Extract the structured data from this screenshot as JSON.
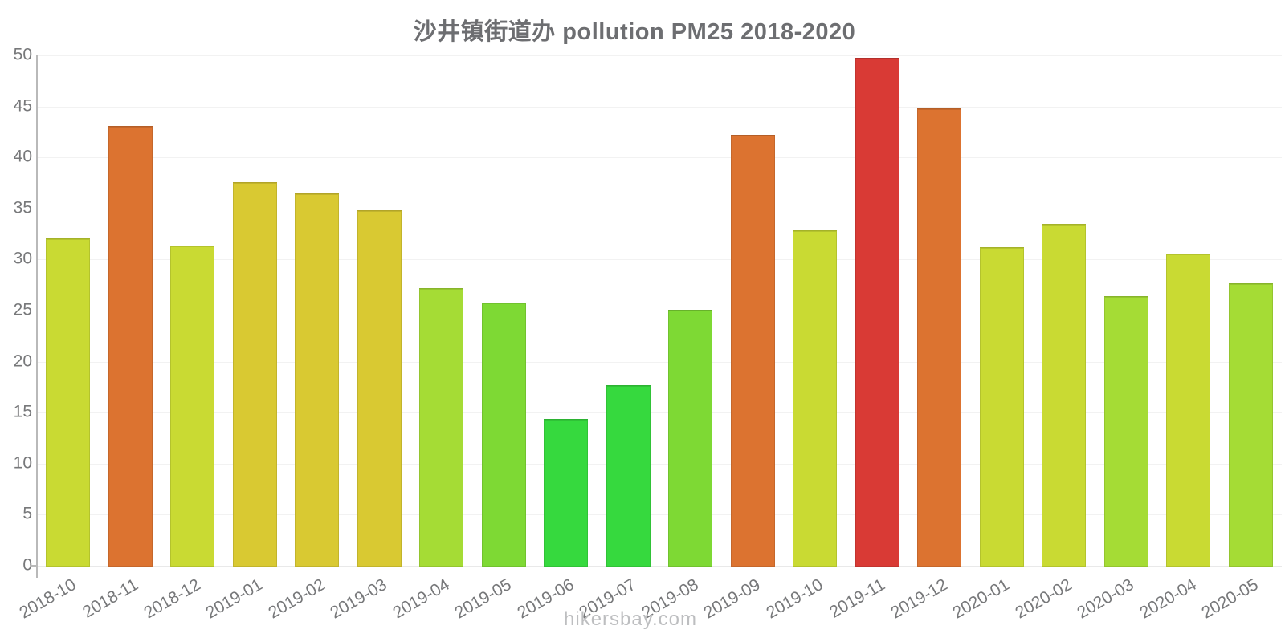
{
  "chart_data": {
    "type": "bar",
    "title": "沙井镇街道办 pollution PM25 2018-2020",
    "xlabel": "",
    "ylabel": "",
    "ylim": [
      0,
      50
    ],
    "yticks": [
      0,
      5,
      10,
      15,
      20,
      25,
      30,
      35,
      40,
      45,
      50
    ],
    "grid": true,
    "legend": false,
    "categories": [
      "2018-10",
      "2018-11",
      "2018-12",
      "2019-01",
      "2019-02",
      "2019-03",
      "2019-04",
      "2019-05",
      "2019-06",
      "2019-07",
      "2019-08",
      "2019-09",
      "2019-10",
      "2019-11",
      "2019-12",
      "2020-01",
      "2020-02",
      "2020-03",
      "2020-04",
      "2020-05"
    ],
    "values": [
      32.1,
      43.1,
      31.4,
      37.6,
      36.5,
      34.8,
      27.2,
      25.8,
      14.4,
      17.7,
      25.1,
      42.2,
      32.9,
      49.8,
      44.8,
      31.2,
      33.5,
      26.4,
      30.6,
      27.7
    ],
    "bar_colors": [
      "#c9da33",
      "#dc7330",
      "#c9da33",
      "#d9c932",
      "#d9c932",
      "#d9c932",
      "#a5dc35",
      "#7ed934",
      "#36d93e",
      "#36d93e",
      "#7ed934",
      "#dc7330",
      "#c9da33",
      "#d93a35",
      "#dc7330",
      "#c9da33",
      "#c9da33",
      "#a5dc35",
      "#c9da33",
      "#a5dc35"
    ]
  },
  "watermark": "hikersbay.com",
  "colors": {
    "title_text": "#6d6e71",
    "axis_text": "#77787a",
    "axis_line": "#b9b9b9",
    "gridline": "#f2f2f2",
    "watermark_text": "#bdbec0"
  }
}
